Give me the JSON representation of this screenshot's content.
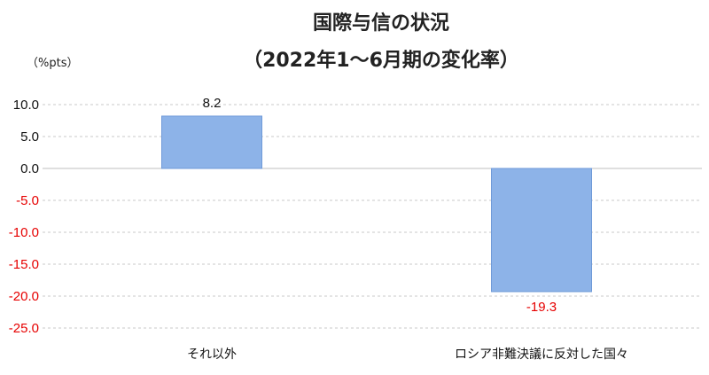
{
  "chart_data": {
    "type": "bar",
    "title": "国際与信の状況",
    "subtitle": "（2022年1～6月期の変化率）",
    "ylabel": "（%pts）",
    "xlabel": "",
    "categories": [
      "それ以外",
      "ロシア非難決議に反対した国々"
    ],
    "values": [
      8.2,
      -19.3
    ],
    "data_labels": [
      "8.2",
      "-19.3"
    ],
    "ylim": [
      -25,
      10
    ],
    "yticks": [
      10,
      5,
      0,
      -5,
      -10,
      -15,
      -20,
      -25
    ],
    "ytick_labels": [
      "10.0",
      "5.0",
      "0.0",
      "-5.0",
      "-10.0",
      "-15.0",
      "-20.0",
      "-25.0"
    ],
    "grid": true,
    "legend": "none",
    "colors": {
      "bar_fill": "#8db3e8",
      "bar_stroke": "#6f9ad8",
      "positive_text": "#111111",
      "negative_text": "#e60000",
      "grid": "#c8c8c8",
      "zero_line": "#bfbfbf"
    }
  }
}
